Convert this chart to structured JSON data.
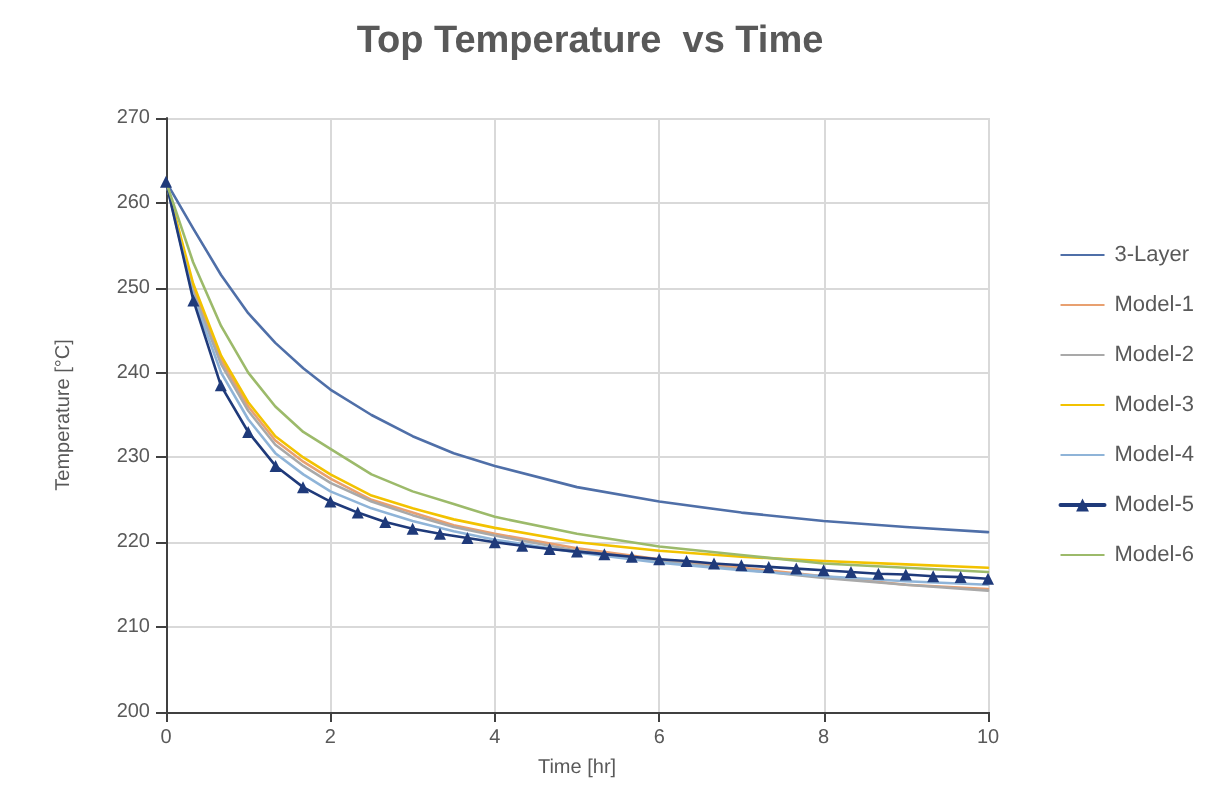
{
  "chart_data": {
    "type": "line",
    "title": "Top Temperature  vs Time",
    "xlabel": "Time [hr]",
    "ylabel": "Temperature [°C]",
    "xlim": [
      0,
      10
    ],
    "xticks": [
      0,
      2,
      4,
      6,
      8,
      10
    ],
    "ylim": [
      200,
      270
    ],
    "yticks": [
      200,
      210,
      220,
      230,
      240,
      250,
      260,
      270
    ],
    "grid": true,
    "legend": "right",
    "marker": "none",
    "line_style": "solid",
    "x": [
      0,
      0.33,
      0.67,
      1,
      1.33,
      1.67,
      2,
      2.5,
      3,
      3.5,
      4,
      5,
      6,
      7,
      8,
      9,
      10
    ],
    "series": [
      {
        "name": "3-Layer",
        "color": "#4f6fa8",
        "values": [
          262.5,
          257,
          251.5,
          247,
          243.5,
          240.5,
          238,
          235,
          232.5,
          230.5,
          229,
          226.5,
          224.8,
          223.5,
          222.5,
          221.8,
          221.2
        ]
      },
      {
        "name": "Model-1",
        "color": "#e8a070",
        "values": [
          262.5,
          250,
          241.5,
          236,
          232,
          229.5,
          227.5,
          225,
          223.5,
          222,
          221,
          219.3,
          218,
          217,
          216,
          215,
          214.5
        ]
      },
      {
        "name": "Model-2",
        "color": "#a9a9a9",
        "values": [
          262.5,
          249.5,
          241,
          235.5,
          231.5,
          229,
          227,
          224.8,
          223.2,
          221.8,
          220.8,
          219,
          217.8,
          216.8,
          215.8,
          215,
          214.3
        ]
      },
      {
        "name": "Model-3",
        "color": "#f2c200",
        "values": [
          262.5,
          250.5,
          242,
          236.5,
          232.5,
          230,
          228,
          225.5,
          224,
          222.7,
          221.7,
          220,
          219,
          218.3,
          217.8,
          217.4,
          217
        ]
      },
      {
        "name": "Model-4",
        "color": "#8fb4d8",
        "values": [
          262.5,
          249,
          240,
          234.5,
          230.5,
          228,
          226,
          224,
          222.5,
          221.3,
          220.3,
          218.8,
          217.6,
          216.7,
          216,
          215.4,
          215
        ]
      },
      {
        "name": "Model-5",
        "color": "#1f3a7a",
        "marker": "triangle",
        "x": [
          0,
          0.333,
          0.667,
          1,
          1.333,
          1.667,
          2,
          2.333,
          2.667,
          3,
          3.333,
          3.667,
          4,
          4.333,
          4.667,
          5,
          5.333,
          5.667,
          6,
          6.333,
          6.667,
          7,
          7.333,
          7.667,
          8,
          8.333,
          8.667,
          9,
          9.333,
          9.667,
          10
        ],
        "values": [
          262.5,
          248.5,
          238.5,
          233,
          229,
          226.5,
          224.8,
          223.5,
          222.4,
          221.6,
          221,
          220.5,
          220,
          219.6,
          219.2,
          218.9,
          218.6,
          218.3,
          218,
          217.8,
          217.5,
          217.3,
          217.1,
          216.9,
          216.7,
          216.5,
          216.3,
          216.2,
          216,
          215.9,
          215.7
        ]
      },
      {
        "name": "Model-6",
        "color": "#9cba6a",
        "values": [
          262.5,
          253,
          245.5,
          240,
          236,
          233,
          231,
          228,
          226,
          224.5,
          223,
          221,
          219.5,
          218.5,
          217.5,
          217,
          216.5
        ]
      }
    ]
  }
}
